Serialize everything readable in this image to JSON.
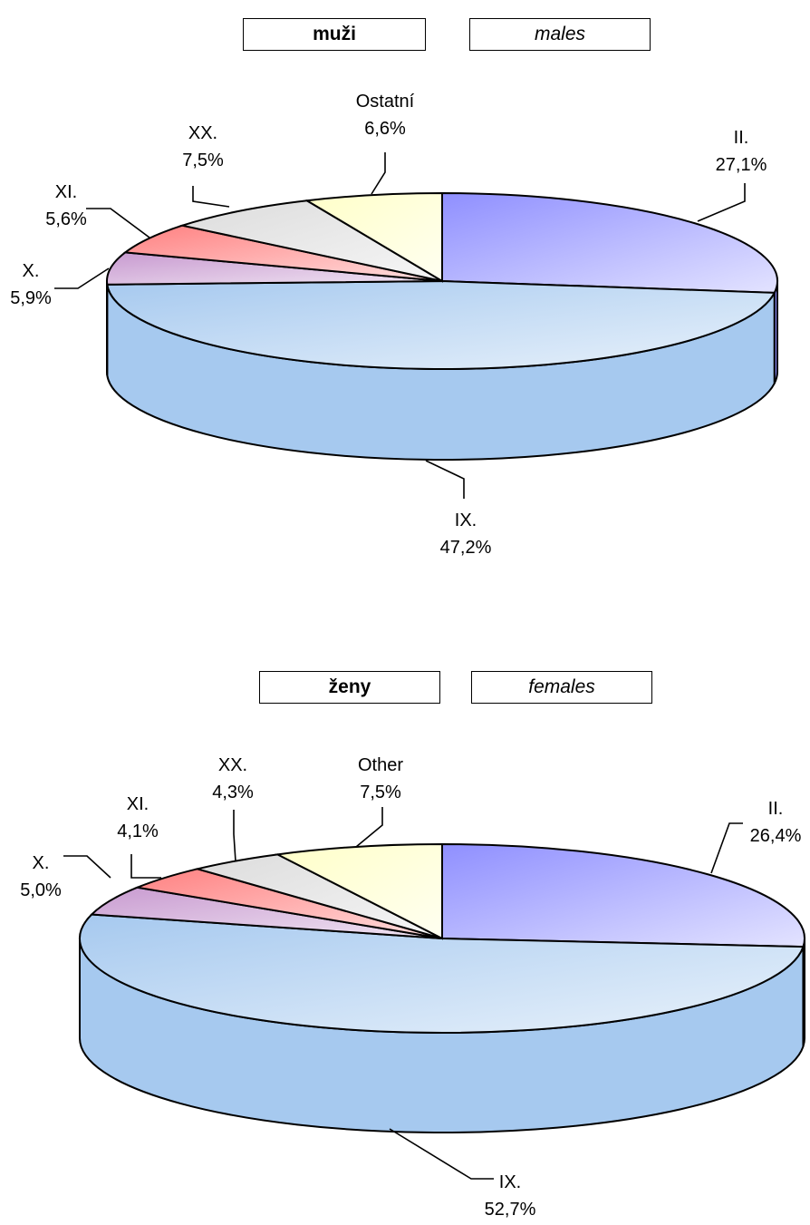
{
  "chart_data": [
    {
      "type": "pie",
      "title_cz": "muži",
      "title_en": "males",
      "slices": [
        {
          "label": "II.",
          "percent_text": "27,1%",
          "value": 27.1,
          "color": "#8f8fff"
        },
        {
          "label": "IX.",
          "percent_text": "47,2%",
          "value": 47.2,
          "color": "#a6c9ef"
        },
        {
          "label": "X.",
          "percent_text": "5,9%",
          "value": 5.9,
          "color": "#c89ad0"
        },
        {
          "label": "XI.",
          "percent_text": "5,6%",
          "value": 5.6,
          "color": "#ff8080"
        },
        {
          "label": "XX.",
          "percent_text": "7,5%",
          "value": 7.5,
          "color": "#dcdcdc"
        },
        {
          "label": "Ostatní",
          "percent_text": "6,6%",
          "value": 6.6,
          "color": "#ffffc8"
        }
      ]
    },
    {
      "type": "pie",
      "title_cz": "ženy",
      "title_en": "females",
      "slices": [
        {
          "label": "II.",
          "percent_text": "26,4%",
          "value": 26.4,
          "color": "#8f8fff"
        },
        {
          "label": "IX.",
          "percent_text": "52,7%",
          "value": 52.7,
          "color": "#a6c9ef"
        },
        {
          "label": "X.",
          "percent_text": "5,0%",
          "value": 5.0,
          "color": "#c89ad0"
        },
        {
          "label": "XI.",
          "percent_text": "4,1%",
          "value": 4.1,
          "color": "#ff8080"
        },
        {
          "label": "XX.",
          "percent_text": "4,3%",
          "value": 4.3,
          "color": "#dcdcdc"
        },
        {
          "label": "Other",
          "percent_text": "7,5%",
          "value": 7.5,
          "color": "#ffffc8"
        }
      ]
    }
  ]
}
